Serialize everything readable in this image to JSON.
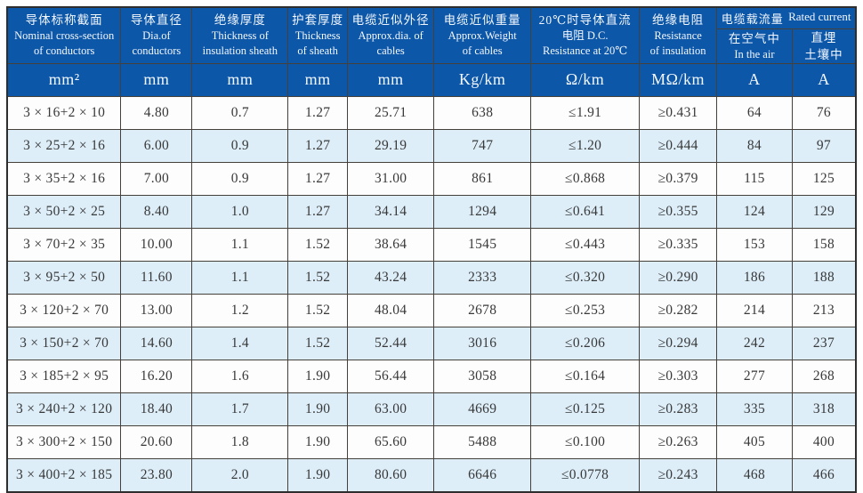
{
  "table": {
    "header": {
      "cols": [
        {
          "lines": [
            "导体标称截面",
            "Nominal cross-section",
            "of conductors"
          ]
        },
        {
          "lines": [
            "导体直径",
            "Dia.of",
            "conductors"
          ]
        },
        {
          "lines": [
            "绝缘厚度",
            "Thickness of",
            "insulation sheath"
          ]
        },
        {
          "lines": [
            "护套厚度",
            "Thickness",
            "of sheath"
          ]
        },
        {
          "lines": [
            "电缆近似外径",
            "Approx.dia. of",
            "cables"
          ]
        },
        {
          "lines": [
            "电缆近似重量",
            "Approx.Weight",
            "of cables"
          ]
        },
        {
          "lines": [
            "20℃时导体直流",
            "电阻 D.C.",
            "Resistance at 20℃"
          ]
        },
        {
          "lines": [
            "绝缘电阻",
            "Resistance",
            "of insulation"
          ]
        }
      ],
      "group": {
        "zh": "电缆载流量",
        "en": "Rated current"
      },
      "sub": [
        {
          "lines": [
            "在空气中",
            "In the air"
          ]
        },
        {
          "lines": [
            "直埋",
            "土壤中"
          ]
        }
      ]
    },
    "units": [
      "mm²",
      "mm",
      "mm",
      "mm",
      "mm",
      "Kg/km",
      "Ω/km",
      "MΩ/km",
      "A",
      "A"
    ],
    "rows": [
      [
        "3 × 16+2 × 10",
        "4.80",
        "0.7",
        "1.27",
        "25.71",
        "638",
        "≤1.91",
        "≥0.431",
        "64",
        "76"
      ],
      [
        "3 × 25+2 × 16",
        "6.00",
        "0.9",
        "1.27",
        "29.19",
        "747",
        "≤1.20",
        "≥0.444",
        "84",
        "97"
      ],
      [
        "3 × 35+2 × 16",
        "7.00",
        "0.9",
        "1.27",
        "31.00",
        "861",
        "≤0.868",
        "≥0.379",
        "115",
        "125"
      ],
      [
        "3 × 50+2 × 25",
        "8.40",
        "1.0",
        "1.27",
        "34.14",
        "1294",
        "≤0.641",
        "≥0.355",
        "124",
        "129"
      ],
      [
        "3 × 70+2 × 35",
        "10.00",
        "1.1",
        "1.52",
        "38.64",
        "1545",
        "≤0.443",
        "≥0.335",
        "153",
        "158"
      ],
      [
        "3 × 95+2 × 50",
        "11.60",
        "1.1",
        "1.52",
        "43.24",
        "2333",
        "≤0.320",
        "≥0.290",
        "186",
        "188"
      ],
      [
        "3 × 120+2 × 70",
        "13.00",
        "1.2",
        "1.52",
        "48.04",
        "2678",
        "≤0.253",
        "≥0.282",
        "214",
        "213"
      ],
      [
        "3 × 150+2 × 70",
        "14.60",
        "1.4",
        "1.52",
        "52.44",
        "3016",
        "≤0.206",
        "≥0.294",
        "242",
        "237"
      ],
      [
        "3 × 185+2 × 95",
        "16.20",
        "1.6",
        "1.90",
        "56.44",
        "3058",
        "≤0.164",
        "≥0.303",
        "277",
        "268"
      ],
      [
        "3 × 240+2 × 120",
        "18.40",
        "1.7",
        "1.90",
        "63.00",
        "4669",
        "≤0.125",
        "≥0.283",
        "335",
        "318"
      ],
      [
        "3 × 300+2 × 150",
        "20.60",
        "1.8",
        "1.90",
        "65.60",
        "5488",
        "≤0.100",
        "≥0.263",
        "405",
        "400"
      ],
      [
        "3 × 400+2 × 185",
        "23.80",
        "2.0",
        "1.90",
        "80.60",
        "6646",
        "≤0.0778",
        "≥0.243",
        "468",
        "466"
      ]
    ],
    "colors": {
      "header_bg": "#0d57a8",
      "stripe_bg": "#ddeef9",
      "border": "#46403a"
    }
  }
}
